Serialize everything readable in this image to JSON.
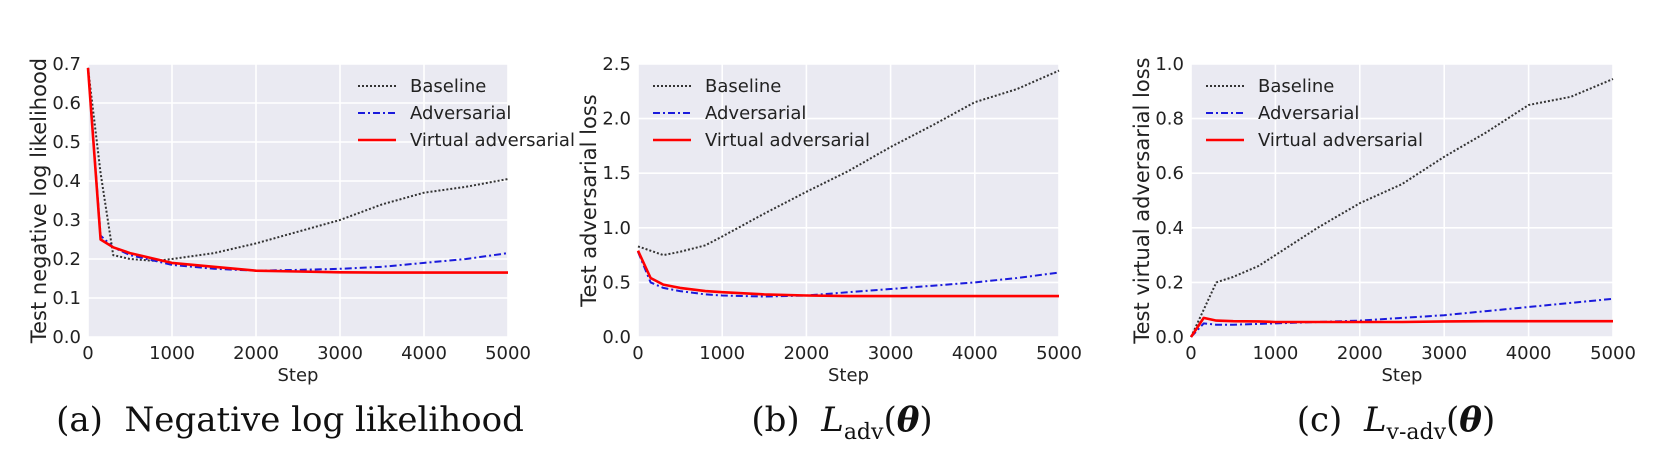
{
  "chart_data": [
    {
      "type": "line",
      "title": "",
      "xlabel": "Step",
      "ylabel": "Test negative log likelihood",
      "xlim": [
        0,
        5000
      ],
      "ylim": [
        0,
        0.7
      ],
      "xticks": [
        "0",
        "1000",
        "2000",
        "3000",
        "4000",
        "5000"
      ],
      "yticks": [
        "0.0",
        "0.1",
        "0.2",
        "0.3",
        "0.4",
        "0.5",
        "0.6",
        "0.7"
      ],
      "grid": true,
      "legend": "top-right",
      "series": [
        {
          "name": "Baseline",
          "color": "#333333",
          "style": "dotted",
          "x": [
            0,
            150,
            300,
            500,
            800,
            1000,
            1500,
            2000,
            2500,
            3000,
            3500,
            4000,
            4500,
            5000
          ],
          "y": [
            0.69,
            0.42,
            0.21,
            0.2,
            0.195,
            0.2,
            0.215,
            0.24,
            0.27,
            0.3,
            0.34,
            0.37,
            0.385,
            0.405
          ]
        },
        {
          "name": "Adversarial",
          "color": "#1a1adc",
          "style": "dashdot",
          "x": [
            0,
            150,
            300,
            500,
            800,
            1000,
            1500,
            2000,
            2500,
            3000,
            3500,
            4000,
            4500,
            5000
          ],
          "y": [
            0.69,
            0.26,
            0.23,
            0.21,
            0.195,
            0.185,
            0.175,
            0.17,
            0.172,
            0.175,
            0.18,
            0.19,
            0.2,
            0.215
          ]
        },
        {
          "name": "Virtual adversarial",
          "color": "#ff0000",
          "style": "solid",
          "x": [
            0,
            150,
            300,
            500,
            800,
            1000,
            1500,
            2000,
            2500,
            3000,
            3500,
            4000,
            4500,
            5000
          ],
          "y": [
            0.69,
            0.25,
            0.23,
            0.215,
            0.2,
            0.19,
            0.18,
            0.17,
            0.168,
            0.166,
            0.165,
            0.165,
            0.165,
            0.165
          ]
        }
      ]
    },
    {
      "type": "line",
      "title": "",
      "xlabel": "Step",
      "ylabel": "Test adversarial loss",
      "xlim": [
        0,
        5000
      ],
      "ylim": [
        0,
        2.5
      ],
      "xticks": [
        "0",
        "1000",
        "2000",
        "3000",
        "4000",
        "5000"
      ],
      "yticks": [
        "0.0",
        "0.5",
        "1.0",
        "1.5",
        "2.0",
        "2.5"
      ],
      "grid": true,
      "legend": "top-left",
      "series": [
        {
          "name": "Baseline",
          "color": "#333333",
          "style": "dotted",
          "x": [
            0,
            150,
            300,
            500,
            800,
            1000,
            1500,
            2000,
            2500,
            3000,
            3500,
            4000,
            4500,
            5000
          ],
          "y": [
            0.83,
            0.79,
            0.75,
            0.78,
            0.84,
            0.92,
            1.13,
            1.33,
            1.52,
            1.74,
            1.94,
            2.15,
            2.27,
            2.44
          ]
        },
        {
          "name": "Adversarial",
          "color": "#1a1adc",
          "style": "dashdot",
          "x": [
            0,
            150,
            300,
            500,
            800,
            1000,
            1500,
            2000,
            2500,
            3000,
            3500,
            4000,
            4500,
            5000
          ],
          "y": [
            0.78,
            0.5,
            0.45,
            0.42,
            0.39,
            0.38,
            0.37,
            0.38,
            0.41,
            0.44,
            0.47,
            0.5,
            0.54,
            0.59
          ]
        },
        {
          "name": "Virtual adversarial",
          "color": "#ff0000",
          "style": "solid",
          "x": [
            0,
            150,
            300,
            500,
            800,
            1000,
            1500,
            2000,
            2500,
            3000,
            3500,
            4000,
            4500,
            5000
          ],
          "y": [
            0.79,
            0.54,
            0.48,
            0.45,
            0.42,
            0.41,
            0.39,
            0.38,
            0.375,
            0.375,
            0.375,
            0.375,
            0.375,
            0.375
          ]
        }
      ]
    },
    {
      "type": "line",
      "title": "",
      "xlabel": "Step",
      "ylabel": "Test virtual adversarial loss",
      "xlim": [
        0,
        5000
      ],
      "ylim": [
        0,
        1.0
      ],
      "xticks": [
        "0",
        "1000",
        "2000",
        "3000",
        "4000",
        "5000"
      ],
      "yticks": [
        "0.0",
        "0.2",
        "0.4",
        "0.6",
        "0.8",
        "1.0"
      ],
      "grid": true,
      "legend": "top-left",
      "series": [
        {
          "name": "Baseline",
          "color": "#333333",
          "style": "dotted",
          "x": [
            0,
            150,
            300,
            500,
            800,
            1000,
            1500,
            2000,
            2500,
            3000,
            3500,
            4000,
            4500,
            5000
          ],
          "y": [
            0.0,
            0.1,
            0.2,
            0.22,
            0.26,
            0.3,
            0.4,
            0.49,
            0.56,
            0.66,
            0.75,
            0.85,
            0.88,
            0.945
          ]
        },
        {
          "name": "Adversarial",
          "color": "#1a1adc",
          "style": "dashdot",
          "x": [
            0,
            150,
            300,
            500,
            800,
            1000,
            1500,
            2000,
            2500,
            3000,
            3500,
            4000,
            4500,
            5000
          ],
          "y": [
            0.0,
            0.05,
            0.045,
            0.045,
            0.048,
            0.05,
            0.055,
            0.06,
            0.07,
            0.08,
            0.095,
            0.11,
            0.125,
            0.14
          ]
        },
        {
          "name": "Virtual adversarial",
          "color": "#ff0000",
          "style": "solid",
          "x": [
            0,
            150,
            300,
            500,
            800,
            1000,
            1500,
            2000,
            2500,
            3000,
            3500,
            4000,
            4500,
            5000
          ],
          "y": [
            0.0,
            0.07,
            0.06,
            0.058,
            0.057,
            0.055,
            0.055,
            0.055,
            0.055,
            0.057,
            0.058,
            0.058,
            0.058,
            0.058
          ]
        }
      ]
    }
  ],
  "captions": [
    {
      "label": "(a)",
      "text": "Negative log likelihood"
    },
    {
      "label": "(b)",
      "text": "L",
      "sub": "adv",
      "arg": "θ"
    },
    {
      "label": "(c)",
      "text": "L",
      "sub": "v-adv",
      "arg": "θ"
    }
  ]
}
